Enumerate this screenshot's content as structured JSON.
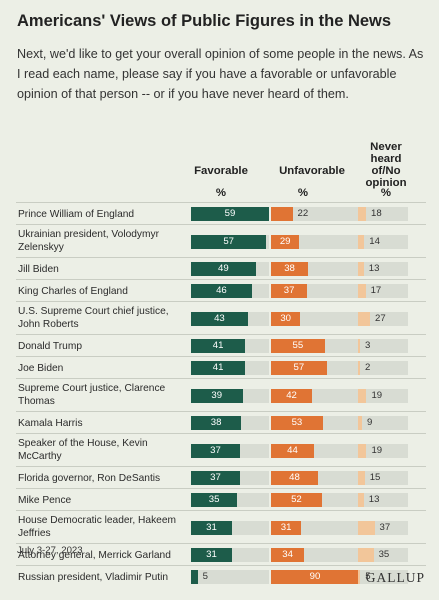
{
  "title": "Americans' Views of Public Figures in the News",
  "subtitle": "Next, we'd like to get your overall opinion of some people in the news. As I read each name, please say if you have a favorable or unfavorable opinion of that person -- or if you have never heard of them.",
  "footnote": "July 3-27, 2023",
  "brand": "GALLUP",
  "colors": {
    "favorable": "#1d5c4a",
    "unfavorable": "#e07434",
    "never_heard": "#f2c69a",
    "track": "#d8dcd3"
  },
  "chart_data": {
    "type": "bar",
    "title": "Americans' Views of Public Figures in the News",
    "unit": "%",
    "xlim": [
      0,
      100
    ],
    "series": [
      {
        "name": "Favorable",
        "unit_label": "%",
        "values": [
          59,
          57,
          49,
          46,
          43,
          41,
          41,
          39,
          38,
          37,
          37,
          35,
          31,
          31,
          5
        ]
      },
      {
        "name": "Unfavorable",
        "unit_label": "%",
        "values": [
          22,
          29,
          38,
          37,
          30,
          55,
          57,
          42,
          53,
          44,
          48,
          52,
          31,
          34,
          90
        ]
      },
      {
        "name": "Never heard of/No opinion",
        "unit_label": "%",
        "values": [
          18,
          14,
          13,
          17,
          27,
          3,
          2,
          19,
          9,
          19,
          15,
          13,
          37,
          35,
          5
        ]
      }
    ],
    "categories": [
      "Prince William of England",
      "Ukrainian president, Volodymyr Zelenskyy",
      "Jill Biden",
      "King Charles of England",
      "U.S. Supreme Court chief justice, John Roberts",
      "Donald Trump",
      "Joe Biden",
      "Supreme Court justice, Clarence Thomas",
      "Kamala Harris",
      "Speaker of the House, Kevin McCarthy",
      "Florida governor, Ron DeSantis",
      "Mike Pence",
      "House Democratic leader, Hakeem Jeffries",
      "Attorney general, Merrick Garland",
      "Russian president, Vladimir Putin"
    ]
  }
}
